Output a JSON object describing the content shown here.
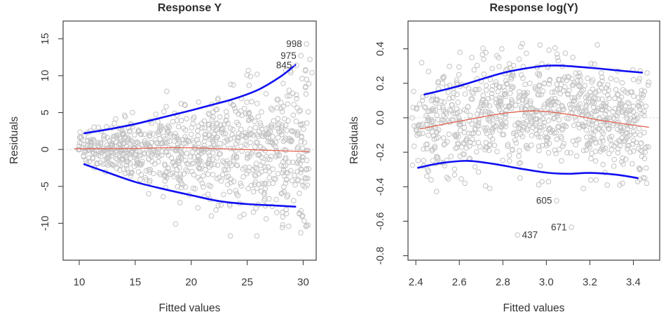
{
  "figure": {
    "kind": "regression-residual-diagnostics",
    "background": "#ffffff"
  },
  "styles": {
    "point_color": "#c2c2c2",
    "point_radius": 3.3,
    "axis_color": "#404040",
    "tick_text_color": "#3a3a3a",
    "outlier_label_color": "#3a3a3a",
    "zero_line_color": "#cccccc",
    "blue": "#0f0ff2",
    "red": "#e4604c"
  },
  "chart_data": [
    {
      "id": "left",
      "type": "scatter",
      "title": "Response Y",
      "xlabel": "Fitted values",
      "ylabel": "Residuals",
      "xlim": [
        8.56,
        31.16
      ],
      "ylim": [
        -15.0,
        17.4
      ],
      "xticks": [
        10,
        15,
        20,
        25,
        30
      ],
      "xtick_labels": [
        "10",
        "15",
        "20",
        "25",
        "30"
      ],
      "yticks": [
        -10,
        -5,
        0,
        5,
        10,
        15
      ],
      "ytick_labels": [
        "-10",
        "-5",
        "0",
        "5",
        "10",
        "15"
      ],
      "grid": false,
      "zero_reference_line": 0,
      "series": [
        {
          "name": "center-smooth",
          "color": "#e4604c",
          "width": 1.3,
          "points": [
            [
              9.6,
              0.1
            ],
            [
              14,
              0.12
            ],
            [
              19,
              0.25
            ],
            [
              23,
              0.08
            ],
            [
              27,
              -0.12
            ],
            [
              30.5,
              -0.3
            ]
          ]
        },
        {
          "name": "upper-envelope",
          "color": "#0f0ff2",
          "width": 2.6,
          "points": [
            [
              10.45,
              2.2
            ],
            [
              12.5,
              2.7
            ],
            [
              15,
              3.45
            ],
            [
              18,
              4.55
            ],
            [
              20,
              5.3
            ],
            [
              22,
              6.1
            ],
            [
              24,
              6.95
            ],
            [
              26,
              8.1
            ],
            [
              28,
              9.9
            ],
            [
              29.3,
              11.45
            ]
          ]
        },
        {
          "name": "lower-envelope",
          "color": "#0f0ff2",
          "width": 2.6,
          "points": [
            [
              10.45,
              -2.0
            ],
            [
              12.5,
              -3.1
            ],
            [
              15,
              -4.4
            ],
            [
              17.5,
              -5.35
            ],
            [
              20,
              -6.2
            ],
            [
              22.5,
              -7.0
            ],
            [
              25,
              -7.4
            ],
            [
              27.5,
              -7.6
            ],
            [
              29.3,
              -7.75
            ]
          ]
        }
      ],
      "labeled_points": [
        {
          "label": "998",
          "x": 30.3,
          "y": 14.3,
          "label_side": "left"
        },
        {
          "label": "975",
          "x": 29.8,
          "y": 12.7,
          "label_side": "left"
        },
        {
          "label": "845",
          "x": 29.4,
          "y": 11.4,
          "label_side": "left"
        }
      ],
      "extra_points": [
        [
          30.6,
          12.2
        ],
        [
          30.8,
          10.4
        ],
        [
          30.2,
          10.8
        ],
        [
          29.9,
          9.6
        ],
        [
          30.5,
          8.9
        ],
        [
          25.1,
          10.7
        ],
        [
          25.3,
          9.9
        ],
        [
          28.9,
          10.4
        ],
        [
          18.6,
          -10.1
        ],
        [
          23.5,
          -11.7
        ],
        [
          21.8,
          -9.0
        ],
        [
          24.7,
          -8.8
        ],
        [
          26.7,
          -9.4
        ],
        [
          28.5,
          -8.7
        ],
        [
          29.8,
          -8.3
        ],
        [
          22.2,
          -8.2
        ],
        [
          20.6,
          -7.9
        ],
        [
          19.0,
          -7.2
        ],
        [
          16.2,
          -6.0
        ],
        [
          17.5,
          -6.4
        ]
      ],
      "scatter_model": {
        "n": 900,
        "seed": 11,
        "x_min": 9.9,
        "x_span": 20.6,
        "x_pow": 0.85,
        "mean_base": 0,
        "mean_curv": 0,
        "mean_center": 0,
        "sd_base": 1.05,
        "sd_slope": 0.205,
        "sd_x0": 10,
        "y_clip": [
          -11.8,
          11.5
        ]
      }
    },
    {
      "id": "right",
      "type": "scatter",
      "title": "Response log(Y)",
      "xlabel": "Fitted values",
      "ylabel": "Residuals",
      "xlim": [
        2.364,
        3.521
      ],
      "ylim": [
        -0.826,
        0.561
      ],
      "xticks": [
        2.4,
        2.6,
        2.8,
        3.0,
        3.2,
        3.4
      ],
      "xtick_labels": [
        "2.4",
        "2.6",
        "2.8",
        "3.0",
        "3.2",
        "3.4"
      ],
      "yticks": [
        -0.8,
        -0.6,
        -0.4,
        -0.2,
        0.0,
        0.2,
        0.4
      ],
      "ytick_labels": [
        "-0.8",
        "-0.6",
        "-0.4",
        "-0.2",
        "0.0",
        "0.2",
        "0.4"
      ],
      "grid": false,
      "zero_reference_line": 0,
      "series": [
        {
          "name": "center-smooth",
          "color": "#e4604c",
          "width": 1.3,
          "points": [
            [
              2.42,
              -0.065
            ],
            [
              2.6,
              -0.02
            ],
            [
              2.8,
              0.025
            ],
            [
              2.95,
              0.04
            ],
            [
              3.1,
              0.02
            ],
            [
              3.25,
              -0.015
            ],
            [
              3.47,
              -0.055
            ]
          ]
        },
        {
          "name": "upper-envelope",
          "color": "#0f0ff2",
          "width": 2.6,
          "points": [
            [
              2.44,
              0.135
            ],
            [
              2.6,
              0.185
            ],
            [
              2.8,
              0.26
            ],
            [
              2.95,
              0.295
            ],
            [
              3.05,
              0.303
            ],
            [
              3.2,
              0.29
            ],
            [
              3.35,
              0.272
            ],
            [
              3.44,
              0.262
            ]
          ]
        },
        {
          "name": "lower-envelope",
          "color": "#0f0ff2",
          "width": 2.6,
          "points": [
            [
              2.41,
              -0.29
            ],
            [
              2.52,
              -0.262
            ],
            [
              2.64,
              -0.25
            ],
            [
              2.76,
              -0.268
            ],
            [
              2.88,
              -0.295
            ],
            [
              3.0,
              -0.318
            ],
            [
              3.1,
              -0.325
            ],
            [
              3.2,
              -0.32
            ],
            [
              3.32,
              -0.33
            ],
            [
              3.42,
              -0.35
            ]
          ]
        }
      ],
      "labeled_points": [
        {
          "label": "605",
          "x": 3.047,
          "y": -0.481,
          "label_side": "left"
        },
        {
          "label": "671",
          "x": 3.115,
          "y": -0.635,
          "label_side": "left"
        },
        {
          "label": "437",
          "x": 2.867,
          "y": -0.68,
          "label_side": "right"
        }
      ],
      "extra_points": [
        [
          2.89,
          0.43
        ],
        [
          3.04,
          0.405
        ],
        [
          2.72,
          -0.395
        ],
        [
          2.98,
          -0.37
        ],
        [
          3.01,
          -0.37
        ],
        [
          3.17,
          -0.41
        ],
        [
          2.74,
          -0.41
        ],
        [
          3.28,
          -0.39
        ],
        [
          3.35,
          -0.38
        ],
        [
          3.42,
          -0.37
        ],
        [
          2.47,
          -0.36
        ],
        [
          2.55,
          -0.355
        ]
      ],
      "scatter_model": {
        "n": 900,
        "seed": 29,
        "x_min": 2.38,
        "x_span": 1.09,
        "x_pow": 0.9,
        "mean_base": 0.04,
        "mean_curv": 0.38,
        "mean_center": 2.95,
        "sd_base": 0.155,
        "sd_slope": 0,
        "sd_x0": 0,
        "y_clip": [
          -0.44,
          0.43
        ]
      }
    }
  ]
}
